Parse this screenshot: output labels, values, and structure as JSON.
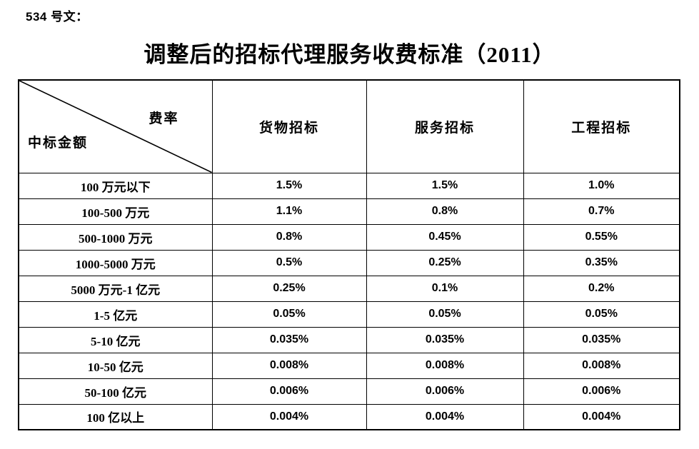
{
  "doc_label": "534 号文：",
  "title": "调整后的招标代理服务收费标准（2011）",
  "table": {
    "corner": {
      "top_right": "费率",
      "bottom_left": "中标金额"
    },
    "columns": [
      "货物招标",
      "服务招标",
      "工程招标"
    ],
    "rows": [
      {
        "label": "100 万元以下",
        "values": [
          "1.5%",
          "1.5%",
          "1.0%"
        ]
      },
      {
        "label": "100-500 万元",
        "values": [
          "1.1%",
          "0.8%",
          "0.7%"
        ]
      },
      {
        "label": "500-1000 万元",
        "values": [
          "0.8%",
          "0.45%",
          "0.55%"
        ]
      },
      {
        "label": "1000-5000 万元",
        "values": [
          "0.5%",
          "0.25%",
          "0.35%"
        ]
      },
      {
        "label": "5000 万元-1 亿元",
        "values": [
          "0.25%",
          "0.1%",
          "0.2%"
        ]
      },
      {
        "label": "1-5 亿元",
        "values": [
          "0.05%",
          "0.05%",
          "0.05%"
        ]
      },
      {
        "label": "5-10 亿元",
        "values": [
          "0.035%",
          "0.035%",
          "0.035%"
        ]
      },
      {
        "label": "10-50 亿元",
        "values": [
          "0.008%",
          "0.008%",
          "0.008%"
        ]
      },
      {
        "label": "50-100 亿元",
        "values": [
          "0.006%",
          "0.006%",
          "0.006%"
        ]
      },
      {
        "label": "100 亿以上",
        "values": [
          "0.004%",
          "0.004%",
          "0.004%"
        ]
      }
    ]
  },
  "colors": {
    "text": "#000000",
    "border": "#000000",
    "background": "#ffffff"
  }
}
